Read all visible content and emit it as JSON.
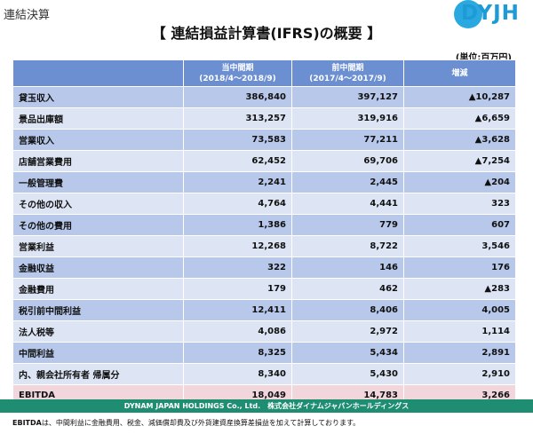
{
  "section_label": "連結決算",
  "logo_text": "DYJH",
  "title": "【 連結損益計算書(IFRS)の概要 】",
  "unit": "(単位:百万円)",
  "headers": {
    "current": {
      "line1": "当中間期",
      "line2": "(2018/4～2018/9)"
    },
    "previous": {
      "line1": "前中間期",
      "line2": "(2017/4～2017/9)"
    },
    "change": "増減"
  },
  "rows": [
    {
      "label": "貸玉収入",
      "current": "386,840",
      "previous": "397,127",
      "change": "▲10,287"
    },
    {
      "label": "景品出庫額",
      "current": "313,257",
      "previous": "319,916",
      "change": "▲6,659"
    },
    {
      "label": "営業収入",
      "current": "73,583",
      "previous": "77,211",
      "change": "▲3,628"
    },
    {
      "label": "店舗営業費用",
      "current": "62,452",
      "previous": "69,706",
      "change": "▲7,254"
    },
    {
      "label": "一般管理費",
      "current": "2,241",
      "previous": "2,445",
      "change": "▲204"
    },
    {
      "label": "その他の収入",
      "current": "4,764",
      "previous": "4,441",
      "change": "323"
    },
    {
      "label": "その他の費用",
      "current": "1,386",
      "previous": "779",
      "change": "607"
    },
    {
      "label": "営業利益",
      "current": "12,268",
      "previous": "8,722",
      "change": "3,546"
    },
    {
      "label": "金融収益",
      "current": "322",
      "previous": "146",
      "change": "176"
    },
    {
      "label": "金融費用",
      "current": "179",
      "previous": "462",
      "change": "▲283"
    },
    {
      "label": "税引前中間利益",
      "current": "12,411",
      "previous": "8,406",
      "change": "4,005"
    },
    {
      "label": "法人税等",
      "current": "4,086",
      "previous": "2,972",
      "change": "1,114"
    },
    {
      "label": "中間利益",
      "current": "8,325",
      "previous": "5,434",
      "change": "2,891"
    },
    {
      "label": "内、親会社所有者 帰属分",
      "current": "8,340",
      "previous": "5,430",
      "change": "2,910"
    },
    {
      "label": "EBITDA",
      "current": "18,049",
      "previous": "14,783",
      "change": "3,266"
    }
  ],
  "footer_bar": "DYNAM JAPAN HOLDINGS Co., Ltd.　株式会社ダイナムジャパンホールディングス",
  "footnote": {
    "term": "EBITDA",
    "text": "は、中間利益に金融費用、税金、減価償却費及び外貨建資産換算差損益を加えて計算しております。"
  },
  "colors": {
    "header": "#6b8fd0",
    "row_dark": "#b7c8ea",
    "row_light": "#dde5f5",
    "ebitda_row": "#f1d6dc",
    "footer": "#1e8d72",
    "logo": "#1e9ad6"
  }
}
